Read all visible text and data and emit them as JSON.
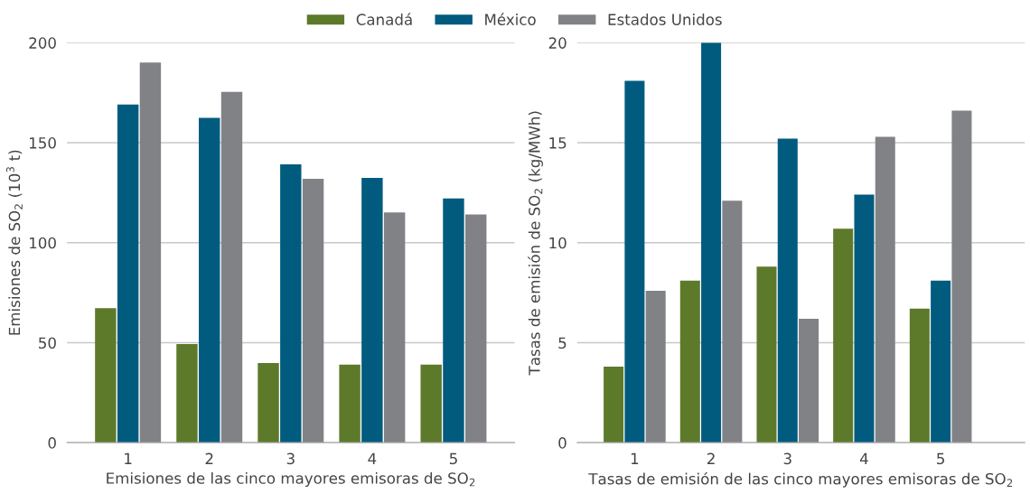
{
  "chart_data": [
    {
      "type": "bar",
      "categories": [
        "1",
        "2",
        "3",
        "4",
        "5"
      ],
      "xlabel": "Emisiones de las cinco mayores emisoras de SO$_{2}$",
      "ylabel": "Emisiones de SO$_{2}$ (10$^{3}$ t)",
      "ylim": [
        0,
        200
      ],
      "yticks": [
        0,
        50,
        100,
        150,
        200
      ],
      "grid": "y",
      "legend": "top",
      "series": [
        {
          "name": "Canadá",
          "color": "#5d7a2b",
          "values": [
            67.2,
            49.3,
            39.8,
            39.0,
            39.0
          ]
        },
        {
          "name": "México",
          "color": "#005b7f",
          "values": [
            169.1,
            162.4,
            139.2,
            132.4,
            122.1
          ]
        },
        {
          "name": "Estados Unidos",
          "color": "#818286",
          "values": [
            190.1,
            175.4,
            132.0,
            115.1,
            114.1
          ]
        }
      ]
    },
    {
      "type": "bar",
      "categories": [
        "1",
        "2",
        "3",
        "4",
        "5"
      ],
      "xlabel": "Tasas de emisión de las cinco mayores emisoras de SO$_{2}$",
      "ylabel": "Tasas de emisión de SO$_{2}$ (kg/MWh)",
      "ylim": [
        0,
        20
      ],
      "yticks": [
        0,
        5,
        10,
        15,
        20
      ],
      "grid": "y",
      "series": [
        {
          "color": "#5d7a2b",
          "values": [
            3.8,
            8.1,
            8.8,
            10.7,
            6.7
          ]
        },
        {
          "color": "#005b7f",
          "values": [
            18.1,
            20.0,
            15.2,
            12.4,
            8.1
          ]
        },
        {
          "color": "#818286",
          "values": [
            7.6,
            12.1,
            6.2,
            15.3,
            16.6
          ]
        }
      ]
    }
  ]
}
